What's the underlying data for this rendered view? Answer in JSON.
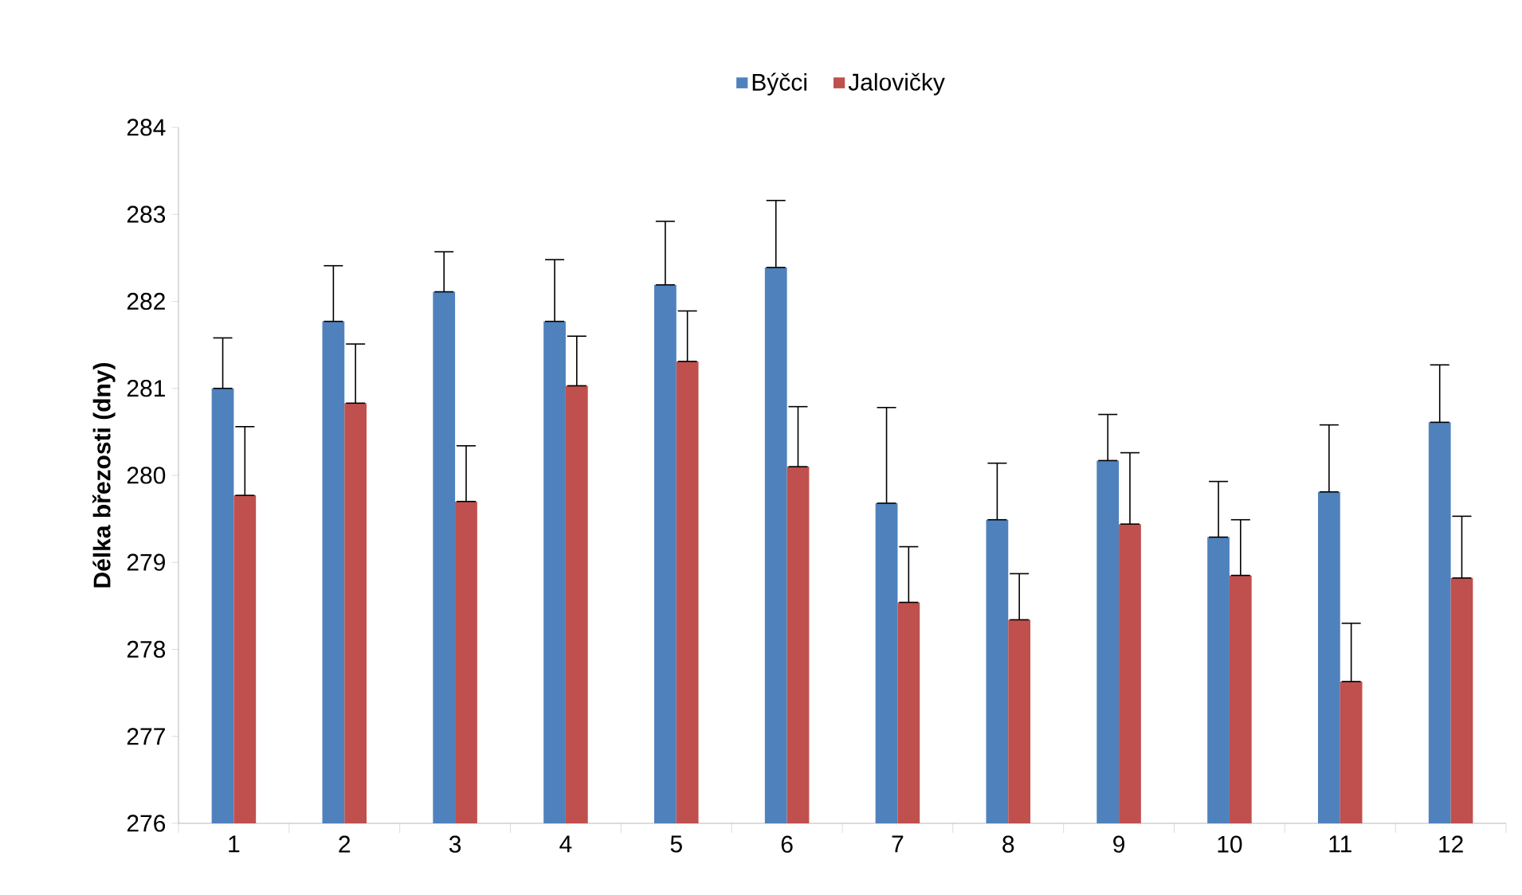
{
  "chart_data": {
    "type": "bar",
    "ylabel": "Délka březosti (dny)",
    "categories": [
      "1",
      "2",
      "3",
      "4",
      "5",
      "6",
      "7",
      "8",
      "9",
      "10",
      "11",
      "12"
    ],
    "series": [
      {
        "name": "Býčci",
        "color": "#4f81bd",
        "values": [
          281.0,
          281.77,
          282.11,
          281.77,
          282.19,
          282.39,
          279.68,
          279.49,
          280.17,
          279.29,
          279.81,
          280.61
        ],
        "errors": [
          [
            281.0,
            281.58
          ],
          [
            281.77,
            282.41
          ],
          [
            282.11,
            282.57
          ],
          [
            281.77,
            282.48
          ],
          [
            282.19,
            282.92
          ],
          [
            282.39,
            283.16
          ],
          [
            279.68,
            280.78
          ],
          [
            279.49,
            280.14
          ],
          [
            280.17,
            280.7
          ],
          [
            279.29,
            279.93
          ],
          [
            279.81,
            280.58
          ],
          [
            280.61,
            281.27
          ]
        ]
      },
      {
        "name": "Jalovičky",
        "color": "#c0504d",
        "values": [
          279.77,
          280.83,
          279.7,
          281.03,
          281.31,
          280.1,
          278.54,
          278.34,
          279.44,
          278.85,
          277.63,
          278.82
        ],
        "errors": [
          [
            279.77,
            280.56
          ],
          [
            280.83,
            281.51
          ],
          [
            279.7,
            280.34
          ],
          [
            281.03,
            281.6
          ],
          [
            281.31,
            281.89
          ],
          [
            280.1,
            280.79
          ],
          [
            278.54,
            279.18
          ],
          [
            278.34,
            278.87
          ],
          [
            279.44,
            280.26
          ],
          [
            278.85,
            279.49
          ],
          [
            277.63,
            278.3
          ],
          [
            278.82,
            279.53
          ]
        ]
      }
    ],
    "ylim": [
      276,
      284
    ],
    "yticks": [
      276,
      277,
      278,
      279,
      280,
      281,
      282,
      283,
      284
    ],
    "legend": "top",
    "grid": false
  }
}
